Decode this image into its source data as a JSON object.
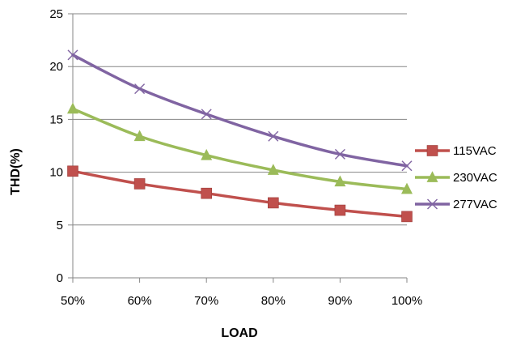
{
  "chart_data": {
    "type": "line",
    "title": "",
    "xlabel": "LOAD",
    "ylabel": "THD(%)",
    "categories": [
      "50%",
      "60%",
      "70%",
      "80%",
      "90%",
      "100%"
    ],
    "ylim": [
      0,
      25
    ],
    "yticks": [
      "0",
      "5",
      "10",
      "15",
      "20",
      "25"
    ],
    "grid": true,
    "legend_position": "right",
    "series": [
      {
        "name": "115VAC",
        "values": [
          10.1,
          8.9,
          8.0,
          7.1,
          6.4,
          5.8
        ],
        "color": "#c0504d",
        "marker": "square"
      },
      {
        "name": "230VAC",
        "values": [
          16.0,
          13.4,
          11.6,
          10.2,
          9.1,
          8.4
        ],
        "color": "#9bbb59",
        "marker": "triangle"
      },
      {
        "name": "277VAC",
        "values": [
          21.1,
          17.9,
          15.5,
          13.4,
          11.7,
          10.6
        ],
        "color": "#8064a2",
        "marker": "x"
      }
    ]
  }
}
